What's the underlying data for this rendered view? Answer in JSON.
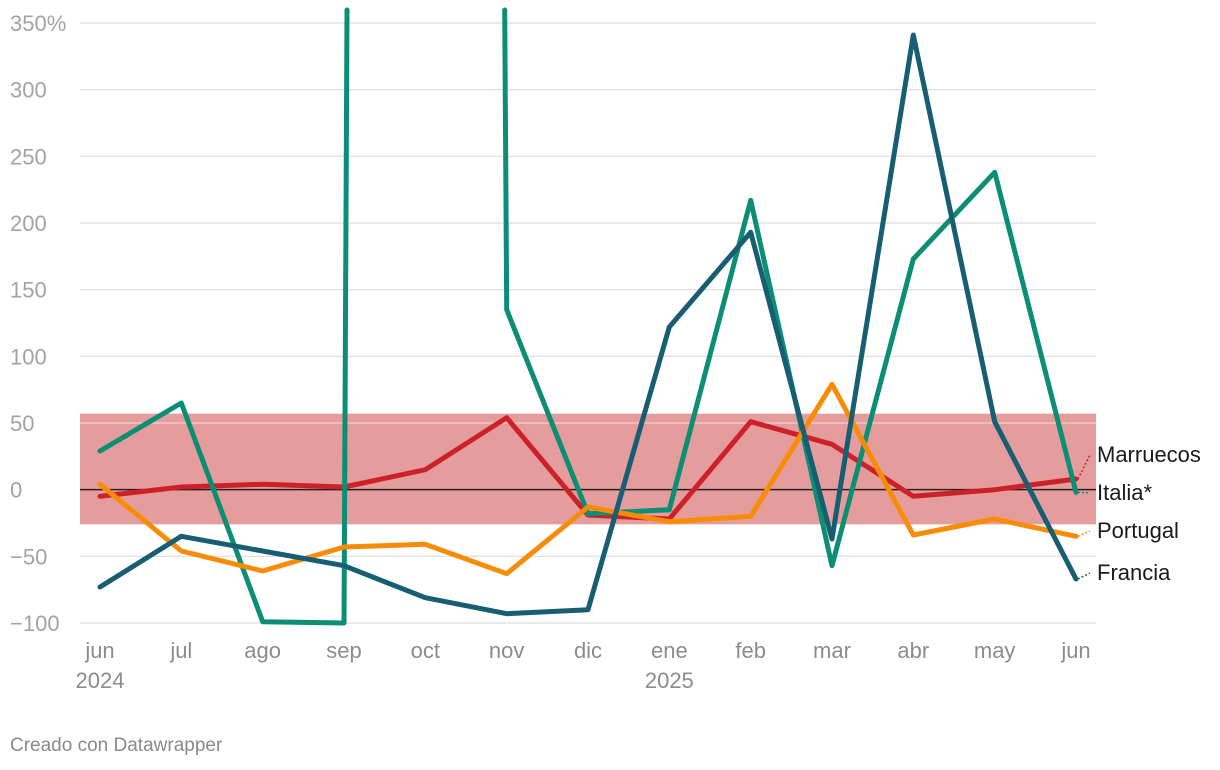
{
  "chart_data": {
    "type": "line",
    "categories": [
      "jun",
      "jul",
      "ago",
      "sep",
      "oct",
      "nov",
      "dic",
      "ene",
      "feb",
      "mar",
      "abr",
      "may",
      "jun"
    ],
    "year_labels": [
      {
        "category_index": 0,
        "label": "2024"
      },
      {
        "category_index": 7,
        "label": "2025"
      }
    ],
    "y_ticks": [
      {
        "value": 350,
        "label": "350%"
      },
      {
        "value": 300,
        "label": "300"
      },
      {
        "value": 250,
        "label": "250"
      },
      {
        "value": 200,
        "label": "200"
      },
      {
        "value": 150,
        "label": "150"
      },
      {
        "value": 100,
        "label": "100"
      },
      {
        "value": 50,
        "label": "50"
      },
      {
        "value": 0,
        "label": "0"
      },
      {
        "value": -50,
        "label": "−50"
      },
      {
        "value": -100,
        "label": "−100"
      }
    ],
    "ylim": [
      -100,
      350
    ],
    "grid": true,
    "highlight_band": {
      "from": -26,
      "to": 57,
      "color": "#e59c9c"
    },
    "series": [
      {
        "name": "Marruecos",
        "color": "#cc2128",
        "values": [
          -5,
          2,
          4,
          2,
          15,
          54,
          -19,
          -22,
          51,
          34,
          -5,
          0,
          8
        ]
      },
      {
        "name": "Italia*",
        "color": "#0b8e74",
        "values": [
          29,
          65,
          -99,
          -100,
          null,
          135,
          -18,
          -15,
          217,
          -57,
          173,
          238,
          -2
        ],
        "offscale": [
          {
            "from_index": 3,
            "to_index": 5
          }
        ]
      },
      {
        "name": "Portugal",
        "color": "#f98c07",
        "values": [
          4,
          -46,
          -61,
          -43,
          -41,
          -63,
          -13,
          -24,
          -20,
          79,
          -34,
          -22,
          -35
        ]
      },
      {
        "name": "Francia",
        "color": "#175e73",
        "values": [
          -73,
          -35,
          -46,
          -57,
          -81,
          -93,
          -90,
          122,
          193,
          -37,
          341,
          51,
          -67
        ]
      }
    ]
  },
  "credit": "Creado con Datawrapper"
}
